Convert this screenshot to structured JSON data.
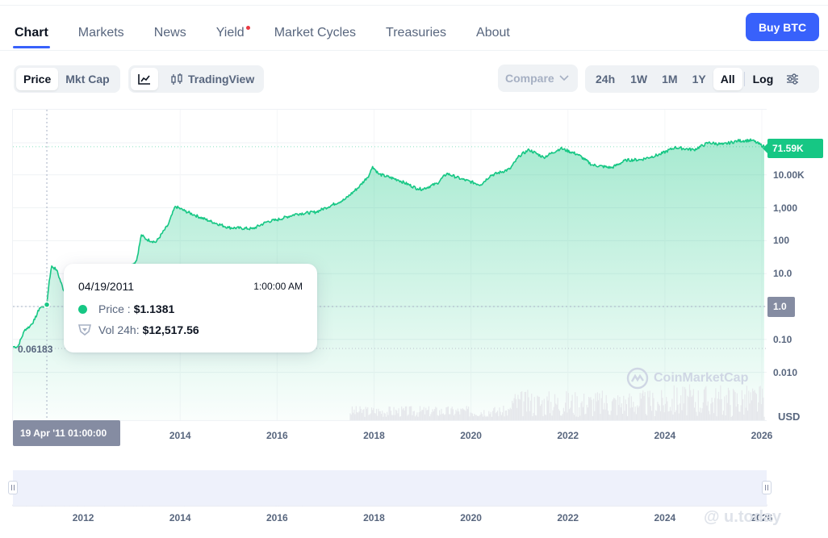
{
  "nav": {
    "items": [
      {
        "label": "Chart",
        "active": true
      },
      {
        "label": "Markets"
      },
      {
        "label": "News"
      },
      {
        "label": "Yield",
        "dot": true
      },
      {
        "label": "Market Cycles"
      },
      {
        "label": "Treasuries"
      },
      {
        "label": "About"
      }
    ],
    "buy_label": "Buy BTC"
  },
  "toolbar": {
    "metric": [
      "Price",
      "Mkt Cap"
    ],
    "metric_selected": "Price",
    "tradingview_label": "TradingView",
    "compare_label": "Compare",
    "ranges": [
      "24h",
      "1W",
      "1M",
      "1Y",
      "All"
    ],
    "range_selected": "All",
    "log_label": "Log"
  },
  "chart_data": {
    "type": "area",
    "scale": "log",
    "currency": "USD",
    "y_ticks": [
      "10.00K",
      "1,000",
      "100",
      "10.0",
      "1.0",
      "0.10",
      "0.010"
    ],
    "x_ticks": [
      "2014",
      "2016",
      "2018",
      "2020",
      "2022",
      "2024",
      "2026"
    ],
    "navigator_x_ticks": [
      "2012",
      "2014",
      "2016",
      "2018",
      "2020",
      "2022",
      "2024",
      "2026"
    ],
    "series": [
      {
        "x": [
          2010.55,
          2010.65,
          2010.8,
          2010.9,
          2011.0,
          2011.1,
          2011.25,
          2011.3,
          2011.35,
          2011.45,
          2011.6,
          2011.8,
          2012.0,
          2012.3,
          2012.6,
          2012.9,
          2013.1,
          2013.2,
          2013.3,
          2013.5,
          2013.75,
          2013.9,
          2014.1,
          2014.3,
          2014.6,
          2015.0,
          2015.5,
          2015.8,
          2016.0,
          2016.4,
          2016.8,
          2017.0,
          2017.4,
          2017.7,
          2017.9,
          2017.97,
          2018.1,
          2018.5,
          2018.9,
          2019.0,
          2019.3,
          2019.5,
          2019.8,
          2020.2,
          2020.4,
          2020.8,
          2021.0,
          2021.2,
          2021.5,
          2021.85,
          2022.2,
          2022.5,
          2022.9,
          2023.2,
          2023.5,
          2023.9,
          2024.2,
          2024.6,
          2024.9,
          2025.2,
          2025.5,
          2025.8,
          2026.05
        ],
        "y": [
          0.06,
          0.06,
          0.2,
          0.25,
          0.4,
          0.9,
          1.1381,
          6.0,
          17.0,
          13.0,
          3.0,
          2.5,
          5.0,
          5.5,
          12.0,
          13.0,
          25.0,
          150,
          110,
          90,
          300,
          1100,
          800,
          600,
          400,
          250,
          230,
          380,
          430,
          650,
          740,
          1000,
          1800,
          4500,
          10000,
          18000,
          10500,
          7000,
          3800,
          3700,
          5500,
          11000,
          7500,
          5000,
          9500,
          15000,
          38000,
          58000,
          34000,
          64000,
          42000,
          20000,
          16500,
          28000,
          29000,
          42000,
          68000,
          58000,
          95000,
          84000,
          108000,
          112000,
          71590
        ]
      }
    ],
    "current_price_label": "71.59K",
    "crosshair_value_label": "1.0",
    "low_label": "0.06183"
  },
  "tooltip": {
    "date": "04/19/2011",
    "time": "1:00:00 AM",
    "price_label": "Price :",
    "price_value": "$1.1381",
    "volume_label": "Vol 24h:",
    "volume_value": "$12,517.56"
  },
  "crosshair_date": "19 Apr '11 01:00:00",
  "watermark": "CoinMarketCap",
  "source_mark": "@ u.today",
  "colors": {
    "accent": "#3861fb",
    "up": "#16c784",
    "muted": "#858ca2"
  }
}
